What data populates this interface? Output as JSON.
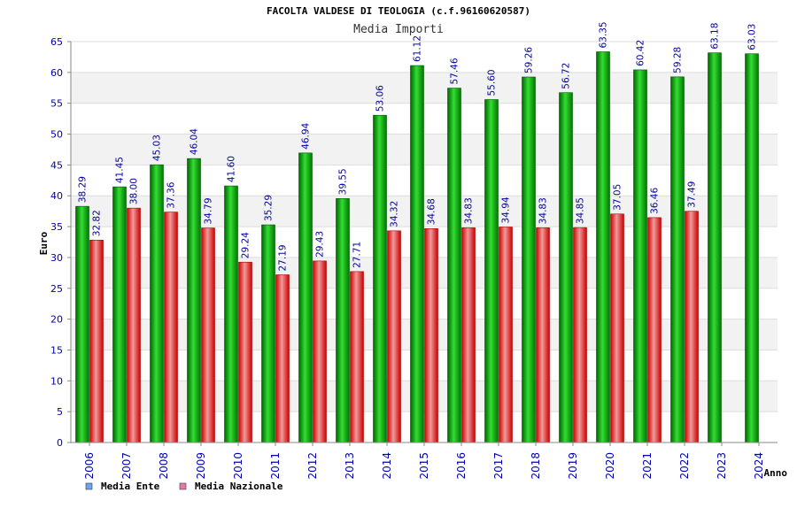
{
  "chart_data": {
    "type": "bar",
    "title": "FACOLTA VALDESE DI TEOLOGIA (c.f.96160620587)",
    "subtitle": "Media Importi",
    "xlabel": "Anno",
    "ylabel": "Euro",
    "ylim": [
      0,
      65
    ],
    "yticks": [
      0,
      5,
      10,
      15,
      20,
      25,
      30,
      35,
      40,
      45,
      50,
      55,
      60,
      65
    ],
    "grid": true,
    "legend_position": "bottom-left",
    "categories": [
      "2006",
      "2007",
      "2008",
      "2009",
      "2010",
      "2011",
      "2012",
      "2013",
      "2014",
      "2015",
      "2016",
      "2017",
      "2018",
      "2019",
      "2020",
      "2021",
      "2022",
      "2023",
      "2024"
    ],
    "series": [
      {
        "name": "Media Ente",
        "color": "#22bb22",
        "legend_color": "#6aa6e8",
        "values": [
          38.29,
          41.45,
          45.03,
          46.04,
          41.6,
          35.29,
          46.94,
          39.55,
          53.06,
          61.12,
          57.46,
          55.6,
          59.26,
          56.72,
          63.35,
          60.42,
          59.28,
          63.18,
          63.03
        ],
        "labels": [
          "38.29",
          "41.45",
          "45.03",
          "46.04",
          "41.60",
          "35.29",
          "46.94",
          "39.55",
          "53.06",
          "61.12",
          "57.46",
          "55.60",
          "59.26",
          "56.72",
          "63.35",
          "60.42",
          "59.28",
          "63.18",
          "63.03"
        ]
      },
      {
        "name": "Media Nazionale",
        "color": "#dd3333",
        "legend_color": "#e07ab0",
        "values": [
          32.82,
          38.0,
          37.36,
          34.79,
          29.24,
          27.19,
          29.43,
          27.71,
          34.32,
          34.68,
          34.83,
          34.94,
          34.83,
          34.85,
          37.05,
          36.46,
          37.49,
          null,
          null
        ],
        "labels": [
          "32.82",
          "38.00",
          "37.36",
          "34.79",
          "29.24",
          "27.19",
          "29.43",
          "27.71",
          "34.32",
          "34.68",
          "34.83",
          "34.94",
          "34.83",
          "34.85",
          "37.05",
          "36.46",
          "37.49",
          null,
          null
        ]
      }
    ]
  }
}
